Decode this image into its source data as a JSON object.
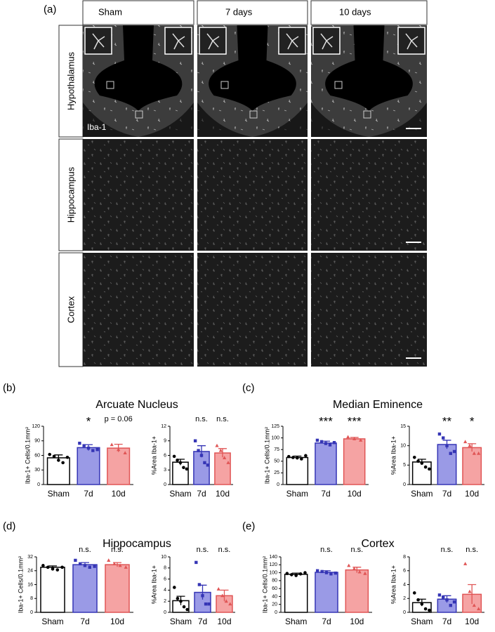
{
  "figure": {
    "panel_a": {
      "label": "(a)",
      "columns": [
        "Sham",
        "7 days",
        "10 days"
      ],
      "rows": [
        "Hypothalamus",
        "Hippocampus",
        "Cortex"
      ],
      "stain": "Iba-1"
    },
    "panels": [
      {
        "label": "(b)",
        "title": "Arcuate Nucleus"
      },
      {
        "label": "(c)",
        "title": "Median Eminence"
      },
      {
        "label": "(d)",
        "title": "Hippocampus"
      },
      {
        "label": "(e)",
        "title": "Cortex"
      }
    ]
  },
  "chart_data": [
    {
      "type": "bar",
      "ylabel": "Iba-1+ Cells/0.1mm²",
      "categories": [
        "Sham",
        "7d",
        "10d"
      ],
      "values": [
        55,
        76,
        75
      ],
      "errors": [
        6,
        6,
        8
      ],
      "points": [
        [
          62,
          58,
          50,
          45,
          56
        ],
        [
          85,
          80,
          75,
          70,
          72
        ],
        [
          82,
          72,
          65
        ]
      ],
      "annotations": [
        null,
        "*",
        "p = 0.06"
      ],
      "colors": [
        "#ffffff",
        "#9a9ae6",
        "#f5a3a3"
      ],
      "edge_colors": [
        "#000000",
        "#3535b5",
        "#e05555"
      ],
      "ylim": [
        0,
        120
      ],
      "yticks": [
        0,
        30,
        60,
        90,
        120
      ]
    },
    {
      "type": "bar",
      "ylabel": "%Area Iba-1+",
      "categories": [
        "Sham",
        "7d",
        "10d"
      ],
      "values": [
        4.6,
        6.8,
        6.5
      ],
      "errors": [
        0.6,
        1.2,
        0.9
      ],
      "points": [
        [
          5.8,
          5,
          4.5,
          3.5,
          3.2
        ],
        [
          9,
          7,
          6,
          4.5,
          4
        ],
        [
          8,
          7,
          5.5,
          4.5
        ]
      ],
      "annotations": [
        null,
        "n.s.",
        "n.s."
      ],
      "colors": [
        "#ffffff",
        "#9a9ae6",
        "#f5a3a3"
      ],
      "edge_colors": [
        "#000000",
        "#3535b5",
        "#e05555"
      ],
      "ylim": [
        0,
        12
      ],
      "yticks": [
        0,
        3,
        6,
        9,
        12
      ]
    },
    {
      "type": "bar",
      "ylabel": "Iba-1+ Cells/0.1mm²",
      "categories": [
        "Sham",
        "7d",
        "10d"
      ],
      "values": [
        58,
        89,
        98
      ],
      "errors": [
        3,
        4,
        3
      ],
      "points": [
        [
          60,
          58,
          57,
          55,
          62
        ],
        [
          95,
          92,
          88,
          85,
          90
        ],
        [
          102,
          98,
          95
        ]
      ],
      "annotations": [
        null,
        "***",
        "***"
      ],
      "colors": [
        "#ffffff",
        "#9a9ae6",
        "#f5a3a3"
      ],
      "edge_colors": [
        "#000000",
        "#3535b5",
        "#e05555"
      ],
      "ylim": [
        0,
        125
      ],
      "yticks": [
        0,
        25,
        50,
        75,
        100,
        125
      ]
    },
    {
      "type": "bar",
      "ylabel": "%Area Iba-1+",
      "categories": [
        "Sham",
        "7d",
        "10d"
      ],
      "values": [
        5.8,
        10.3,
        9.5
      ],
      "errors": [
        0.7,
        1.1,
        1
      ],
      "points": [
        [
          7,
          6,
          5.5,
          4.5,
          4
        ],
        [
          13,
          12,
          10,
          8,
          8.5
        ],
        [
          11,
          10,
          8,
          8
        ]
      ],
      "annotations": [
        null,
        "**",
        "*"
      ],
      "colors": [
        "#ffffff",
        "#9a9ae6",
        "#f5a3a3"
      ],
      "edge_colors": [
        "#000000",
        "#3535b5",
        "#e05555"
      ],
      "ylim": [
        0,
        15
      ],
      "yticks": [
        0,
        5,
        10,
        15
      ]
    },
    {
      "type": "bar",
      "ylabel": "Iba-1+ Cells/0.1mm²",
      "categories": [
        "Sham",
        "7d",
        "10d"
      ],
      "values": [
        26,
        27.5,
        27.5
      ],
      "errors": [
        0.8,
        1.2,
        1.2
      ],
      "points": [
        [
          27,
          26,
          25,
          24.5,
          26
        ],
        [
          30,
          28,
          27,
          26,
          26.5
        ],
        [
          30,
          28,
          27,
          26
        ]
      ],
      "annotations": [
        null,
        "n.s.",
        "n.s."
      ],
      "colors": [
        "#ffffff",
        "#9a9ae6",
        "#f5a3a3"
      ],
      "edge_colors": [
        "#000000",
        "#3535b5",
        "#e05555"
      ],
      "ylim": [
        0,
        32
      ],
      "yticks": [
        0,
        8,
        16,
        24,
        32
      ]
    },
    {
      "type": "bar",
      "ylabel": "%Area Iba-1+",
      "categories": [
        "Sham",
        "7d",
        "10d"
      ],
      "values": [
        2.1,
        3.6,
        3
      ],
      "errors": [
        0.8,
        1.3,
        1
      ],
      "points": [
        [
          4.5,
          2.5,
          2,
          1,
          0.5
        ],
        [
          9,
          5,
          3,
          1.5,
          1.5
        ],
        [
          4.2,
          3,
          2,
          1.5
        ]
      ],
      "annotations": [
        null,
        "n.s.",
        "n.s."
      ],
      "colors": [
        "#ffffff",
        "#9a9ae6",
        "#f5a3a3"
      ],
      "edge_colors": [
        "#000000",
        "#3535b5",
        "#e05555"
      ],
      "ylim": [
        0,
        10
      ],
      "yticks": [
        0,
        2,
        4,
        6,
        8,
        10
      ]
    },
    {
      "type": "bar",
      "ylabel": "Iba-1+ Cells/0.1mm²",
      "categories": [
        "Sham",
        "7d",
        "10d"
      ],
      "values": [
        96,
        101,
        107
      ],
      "errors": [
        3,
        4,
        7
      ],
      "points": [
        [
          98,
          95,
          93,
          97,
          100
        ],
        [
          105,
          103,
          100,
          97,
          99
        ],
        [
          118,
          110,
          102,
          98
        ]
      ],
      "annotations": [
        null,
        "n.s.",
        "n.s."
      ],
      "colors": [
        "#ffffff",
        "#9a9ae6",
        "#f5a3a3"
      ],
      "edge_colors": [
        "#000000",
        "#3535b5",
        "#e05555"
      ],
      "ylim": [
        0,
        140
      ],
      "yticks": [
        0,
        20,
        40,
        60,
        80,
        100,
        120,
        140
      ]
    },
    {
      "type": "bar",
      "ylabel": "%Area Iba-1+",
      "categories": [
        "Sham",
        "7d",
        "10d"
      ],
      "values": [
        1.4,
        1.9,
        2.6
      ],
      "errors": [
        0.5,
        0.5,
        1.4
      ],
      "points": [
        [
          2.8,
          1.8,
          1.2,
          0.5,
          0.3
        ],
        [
          2.5,
          2.2,
          1.8,
          1,
          1.5
        ],
        [
          7,
          3,
          1,
          0.5
        ]
      ],
      "annotations": [
        null,
        "n.s.",
        "n.s."
      ],
      "colors": [
        "#ffffff",
        "#9a9ae6",
        "#f5a3a3"
      ],
      "edge_colors": [
        "#000000",
        "#3535b5",
        "#e05555"
      ],
      "ylim": [
        0,
        8
      ],
      "yticks": [
        0,
        2,
        4,
        6,
        8
      ]
    }
  ]
}
